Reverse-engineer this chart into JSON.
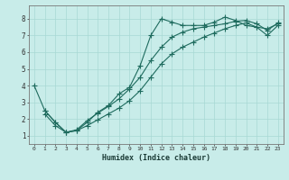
{
  "xlabel": "Humidex (Indice chaleur)",
  "ylabel": "",
  "xlim": [
    -0.5,
    23.5
  ],
  "ylim": [
    0.5,
    8.8
  ],
  "xticks": [
    0,
    1,
    2,
    3,
    4,
    5,
    6,
    7,
    8,
    9,
    10,
    11,
    12,
    13,
    14,
    15,
    16,
    17,
    18,
    19,
    20,
    21,
    22,
    23
  ],
  "yticks": [
    1,
    2,
    3,
    4,
    5,
    6,
    7,
    8
  ],
  "background_color": "#c8ece9",
  "grid_color": "#a8d8d4",
  "line_color": "#1e6b5e",
  "line1_x": [
    0,
    1,
    2,
    3,
    4,
    5,
    6,
    7,
    8,
    9,
    10,
    11,
    12,
    13,
    14,
    15,
    16,
    17,
    18,
    19,
    20,
    21,
    22,
    23
  ],
  "line1_y": [
    4.0,
    2.5,
    1.8,
    1.2,
    1.3,
    1.8,
    2.4,
    2.8,
    3.5,
    3.9,
    5.2,
    7.0,
    8.0,
    7.8,
    7.6,
    7.6,
    7.6,
    7.8,
    8.1,
    7.9,
    7.6,
    7.5,
    7.4,
    7.7
  ],
  "line2_x": [
    1,
    2,
    3,
    4,
    5,
    6,
    7,
    8,
    9,
    10,
    11,
    12,
    13,
    14,
    15,
    16,
    17,
    18,
    19,
    20,
    21,
    22,
    23
  ],
  "line2_y": [
    2.5,
    1.8,
    1.2,
    1.35,
    1.9,
    2.35,
    2.75,
    3.2,
    3.8,
    4.5,
    5.5,
    6.3,
    6.9,
    7.2,
    7.4,
    7.5,
    7.6,
    7.7,
    7.85,
    7.9,
    7.7,
    7.3,
    7.75
  ],
  "line3_x": [
    1,
    2,
    3,
    4,
    5,
    6,
    7,
    8,
    9,
    10,
    11,
    12,
    13,
    14,
    15,
    16,
    17,
    18,
    19,
    20,
    21,
    22,
    23
  ],
  "line3_y": [
    2.3,
    1.6,
    1.2,
    1.3,
    1.6,
    1.95,
    2.3,
    2.65,
    3.1,
    3.7,
    4.5,
    5.3,
    5.9,
    6.3,
    6.6,
    6.9,
    7.15,
    7.4,
    7.6,
    7.75,
    7.5,
    7.0,
    7.6
  ]
}
